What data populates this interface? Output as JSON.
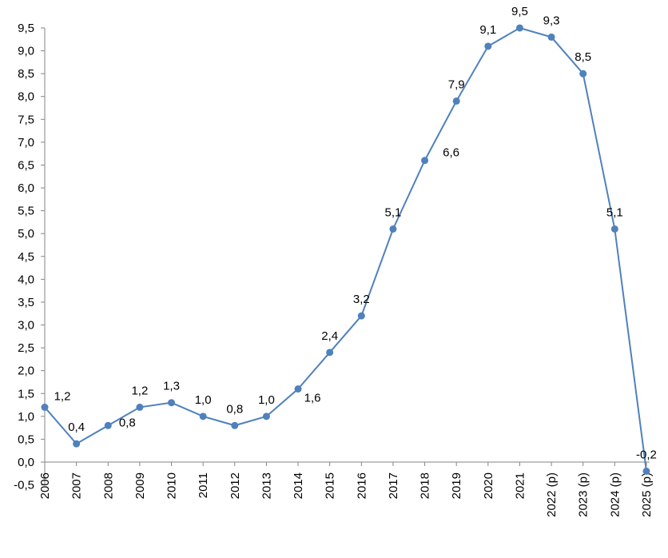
{
  "chart_data": {
    "type": "line",
    "title": "",
    "xlabel": "",
    "ylabel": "",
    "categories": [
      "2006",
      "2007",
      "2008",
      "2009",
      "2010",
      "2011",
      "2012",
      "2013",
      "2014",
      "2015",
      "2016",
      "2017",
      "2018",
      "2019",
      "2020",
      "2021",
      "2022 (p)",
      "2023 (p)",
      "2024 (p)",
      "2025 (p)"
    ],
    "values": [
      1.2,
      0.4,
      0.8,
      1.2,
      1.3,
      1.0,
      0.8,
      1.0,
      1.6,
      2.4,
      3.2,
      5.1,
      6.6,
      7.9,
      9.1,
      9.5,
      9.3,
      8.5,
      5.1,
      -0.2
    ],
    "data_labels": [
      "1,2",
      "0,4",
      "0,8",
      "1,2",
      "1,3",
      "1,0",
      "0,8",
      "1,0",
      "1,6",
      "2,4",
      "3,2",
      "5,1",
      "6,6",
      "7,9",
      "9,1",
      "9,5",
      "9,3",
      "8,5",
      "5,1",
      "-0,2"
    ],
    "ylim": [
      -0.5,
      9.5
    ],
    "y_ticks": [
      "-0,5",
      "0,0",
      "0,5",
      "1,0",
      "1,5",
      "2,0",
      "2,5",
      "3,0",
      "3,5",
      "4,0",
      "4,5",
      "5,0",
      "5,5",
      "6,0",
      "6,5",
      "7,0",
      "7,5",
      "8,0",
      "8,5",
      "9,0",
      "9,5"
    ],
    "grid": false,
    "legend": "none",
    "series_color": "#4F81BD"
  }
}
